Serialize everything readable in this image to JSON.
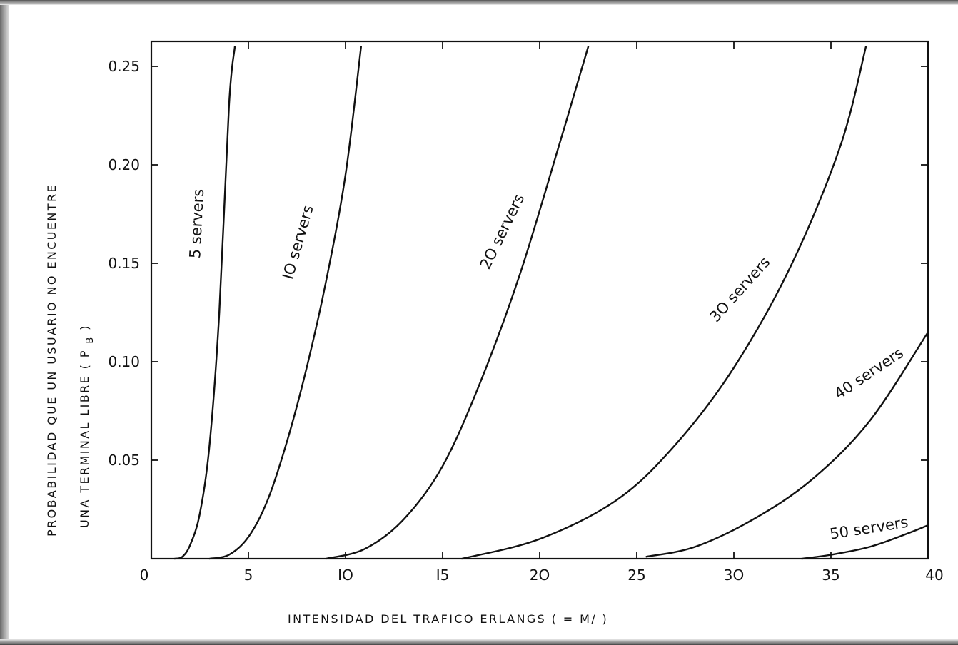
{
  "chart_data": {
    "type": "line",
    "xlabel": "INTENSIDAD  DEL  TRAFICO  ERLANGS  (  = M/ )",
    "ylabel_line1": "PROBABILIDAD   QUE UN USUARIO NO  ENCUENTRE",
    "ylabel_line2": "UNA TERMINAL  LIBRE  ( P",
    "ylabel_subscript": "B",
    "ylabel_close": ")",
    "xlim": [
      0,
      40
    ],
    "ylim": [
      0,
      0.26
    ],
    "x_ticks": [
      0,
      5,
      10,
      15,
      20,
      25,
      30,
      35,
      40
    ],
    "x_tick_labels": [
      "0",
      "5",
      "IO",
      "I5",
      "2O",
      "25",
      "3O",
      "35",
      "40"
    ],
    "y_ticks": [
      0.05,
      0.1,
      0.15,
      0.2,
      0.25
    ],
    "y_tick_labels": [
      "0.05",
      "0.10",
      "0.15",
      "0.20",
      "0.25"
    ],
    "grid": false,
    "legend": "inline curve labels",
    "series": [
      {
        "name": "5 servers",
        "label": "5 servers",
        "x": [
          1.2,
          1.6,
          2.0,
          2.5,
          3.0,
          3.5,
          4.0,
          4.3
        ],
        "y": [
          0.0,
          0.001,
          0.007,
          0.023,
          0.058,
          0.125,
          0.23,
          0.26
        ]
      },
      {
        "name": "10 servers",
        "label": "IO servers",
        "x": [
          3.0,
          4.0,
          5.0,
          6.0,
          7.0,
          8.0,
          9.0,
          10.0,
          10.8
        ],
        "y": [
          0.0,
          0.002,
          0.011,
          0.03,
          0.06,
          0.097,
          0.141,
          0.195,
          0.26
        ]
      },
      {
        "name": "20 servers",
        "label": "2O servers",
        "x": [
          9.0,
          11.0,
          13.0,
          15.0,
          17.0,
          19.0,
          21.0,
          22.5
        ],
        "y": [
          0.0,
          0.005,
          0.02,
          0.047,
          0.091,
          0.145,
          0.21,
          0.26
        ]
      },
      {
        "name": "30 servers",
        "label": "3O servers",
        "x": [
          16.0,
          20.0,
          24.0,
          27.0,
          30.0,
          33.0,
          35.5,
          36.8
        ],
        "y": [
          0.0,
          0.01,
          0.03,
          0.058,
          0.097,
          0.15,
          0.21,
          0.26
        ]
      },
      {
        "name": "40 servers",
        "label": "40 servers",
        "x": [
          25.5,
          28.0,
          31.0,
          34.0,
          37.0,
          40.0
        ],
        "y": [
          0.001,
          0.006,
          0.02,
          0.04,
          0.07,
          0.115
        ]
      },
      {
        "name": "50 servers",
        "label": "50 servers",
        "x": [
          33.5,
          35.0,
          37.0,
          39.0,
          40.0
        ],
        "y": [
          0.0,
          0.002,
          0.006,
          0.013,
          0.017
        ]
      }
    ]
  }
}
